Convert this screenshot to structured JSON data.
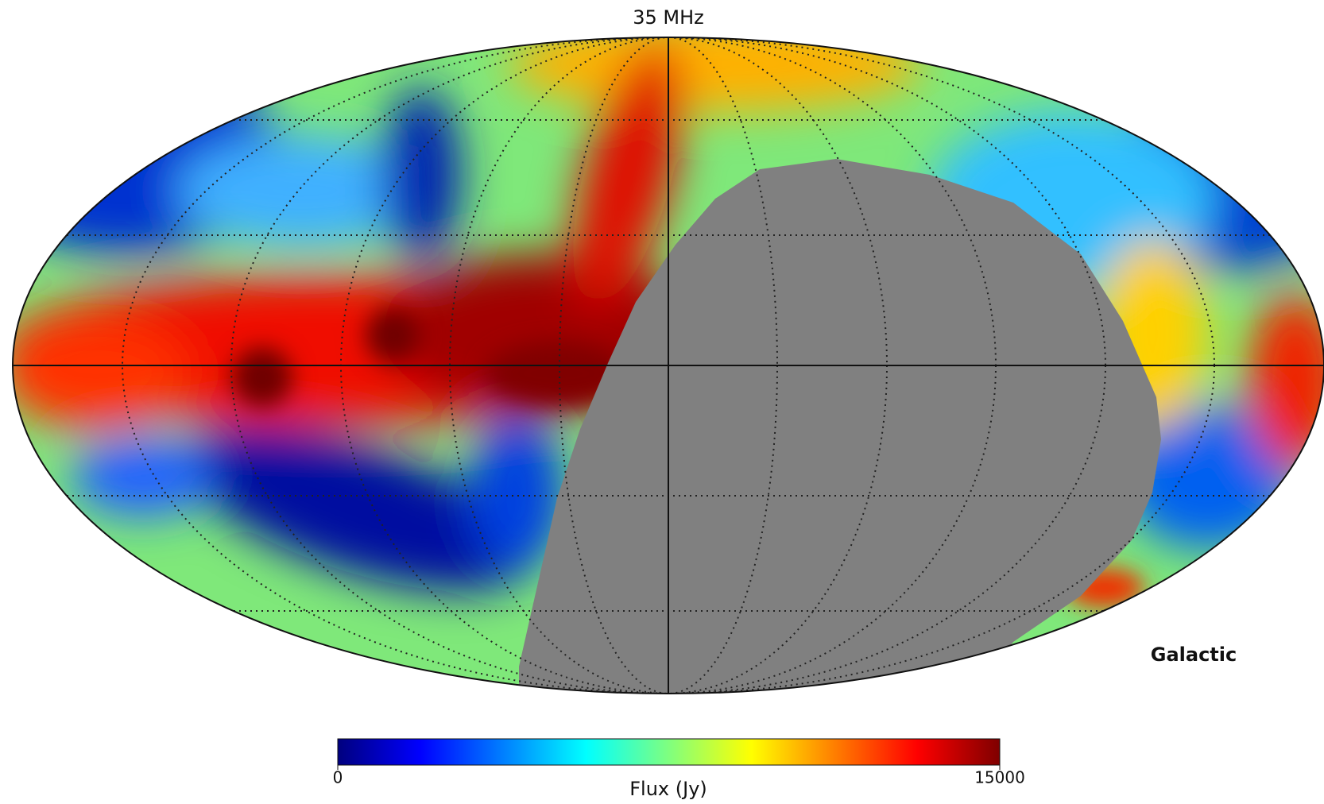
{
  "chart_data": {
    "type": "map",
    "title": "35 MHz",
    "coordinate_system": "Galactic",
    "colorbar": {
      "label": "Flux (Jy)",
      "lim": [
        0,
        15000
      ],
      "ticks": [
        0,
        15000
      ],
      "colormap": "jet"
    }
  }
}
